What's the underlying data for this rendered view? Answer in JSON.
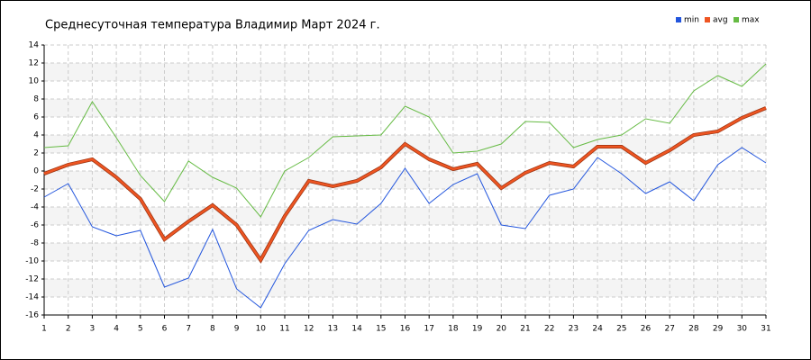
{
  "chart_data": {
    "type": "line",
    "title": "Среднесуточная температура Владимир  Март 2024 г.",
    "x": [
      1,
      2,
      3,
      4,
      5,
      6,
      7,
      8,
      9,
      10,
      11,
      12,
      13,
      14,
      15,
      16,
      17,
      18,
      19,
      20,
      21,
      22,
      23,
      24,
      25,
      26,
      27,
      28,
      29,
      30,
      31
    ],
    "xlim": [
      1,
      31
    ],
    "xticks": [
      1,
      2,
      3,
      4,
      5,
      6,
      7,
      8,
      9,
      10,
      11,
      12,
      13,
      14,
      15,
      16,
      17,
      18,
      19,
      20,
      21,
      22,
      23,
      24,
      25,
      26,
      27,
      28,
      29,
      30,
      31
    ],
    "ylim": [
      -16,
      14
    ],
    "yticks": [
      -16,
      -14,
      -12,
      -10,
      -8,
      -6,
      -4,
      -2,
      0,
      2,
      4,
      6,
      8,
      10,
      12,
      14
    ],
    "grid": true,
    "legend": "top-right",
    "series": [
      {
        "name": "min",
        "color": "#2255dd",
        "values": [
          -2.9,
          -1.4,
          -6.2,
          -7.2,
          -6.6,
          -12.9,
          -11.9,
          -6.5,
          -13.1,
          -15.2,
          -10.3,
          -6.6,
          -5.4,
          -5.9,
          -3.6,
          0.3,
          -3.6,
          -1.5,
          -0.3,
          -6.0,
          -6.4,
          -2.7,
          -2.0,
          1.5,
          -0.3,
          -2.5,
          -1.2,
          -3.3,
          0.7,
          2.6,
          0.9
        ]
      },
      {
        "name": "avg",
        "color": "#ee5522",
        "values": [
          -0.3,
          0.7,
          1.3,
          -0.7,
          -3.1,
          -7.6,
          -5.6,
          -3.8,
          -6.0,
          -9.9,
          -5.0,
          -1.1,
          -1.7,
          -1.1,
          0.4,
          3.0,
          1.3,
          0.2,
          0.8,
          -1.9,
          -0.2,
          0.9,
          0.5,
          2.7,
          2.7,
          0.9,
          2.3,
          4.0,
          4.4,
          5.9,
          7.0
        ]
      },
      {
        "name": "max",
        "color": "#66bb44",
        "values": [
          2.6,
          2.8,
          7.7,
          3.7,
          -0.5,
          -3.4,
          1.1,
          -0.7,
          -1.9,
          -5.1,
          0.0,
          1.5,
          3.8,
          3.9,
          4.0,
          7.2,
          6.0,
          2.0,
          2.2,
          3.0,
          5.5,
          5.4,
          2.6,
          3.5,
          4.0,
          5.8,
          5.3,
          8.9,
          10.6,
          9.4,
          11.9
        ]
      }
    ]
  }
}
